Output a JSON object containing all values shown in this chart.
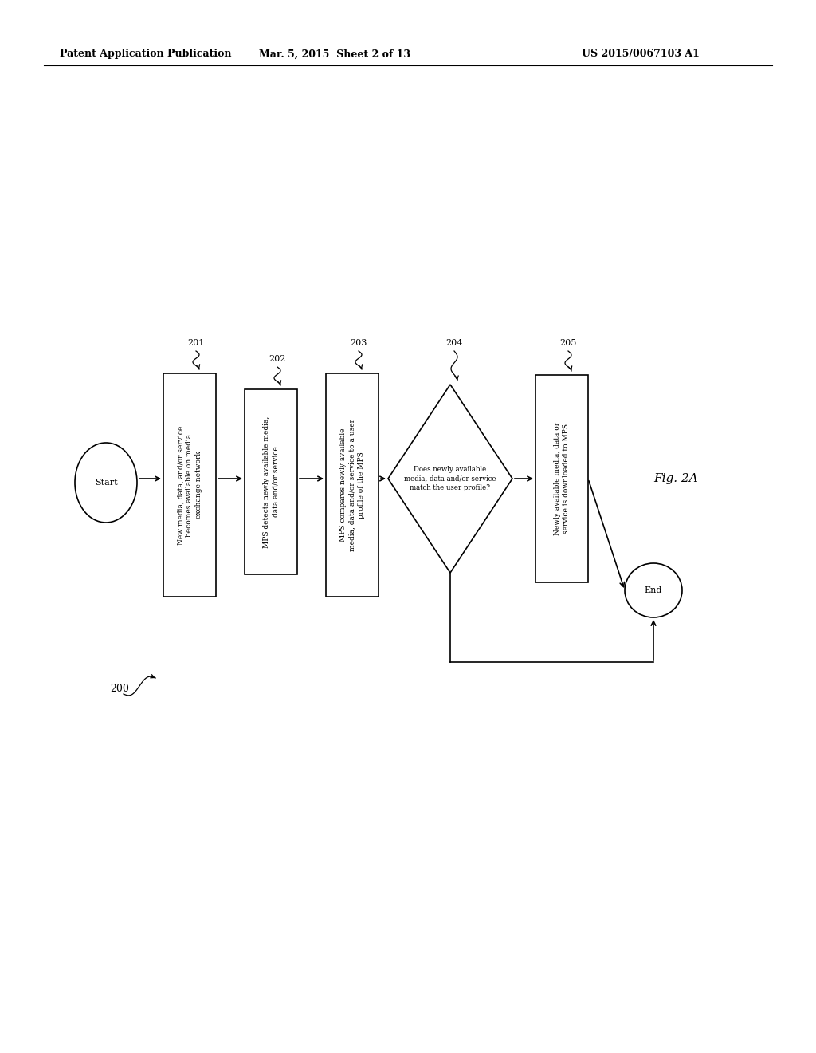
{
  "bg_color": "#ffffff",
  "header_left": "Patent Application Publication",
  "header_mid": "Mar. 5, 2015  Sheet 2 of 13",
  "header_right": "US 2015/0067103 A1",
  "fig_label": "Fig. 2A",
  "diagram_label": "200",
  "start_label": "Start",
  "end_label": "End",
  "box201_text": "New media, data, and/or service\nbecomes available on media\nexchange network",
  "box202_text": "MPS detects newly available media,\ndata and/or service",
  "box203_text": "MPS compares newly available\nmedia, data and/or service to a user\nprofile of the MPS",
  "diamond204_text": "Does newly available\nmedia, data and/or service\nmatch the user profile?",
  "box205_text": "Newly available media, data or\nservice is downloaded to MPS",
  "ref_201": "201",
  "ref_202": "202",
  "ref_203": "203",
  "ref_204": "204",
  "ref_205": "205",
  "ref_200": "200"
}
